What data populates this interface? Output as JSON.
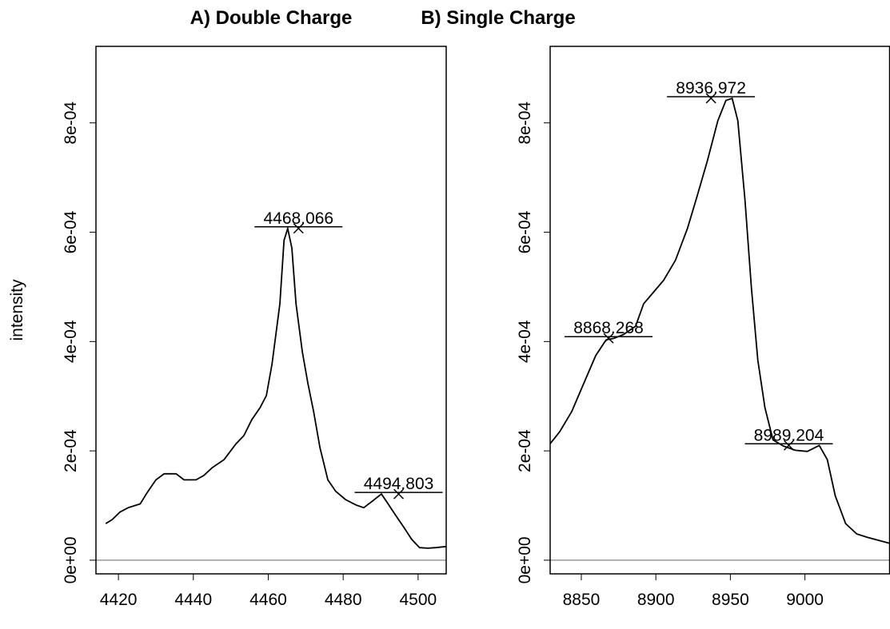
{
  "chart_data": [
    {
      "type": "line",
      "title": "A) Double Charge",
      "ylabel": "intensity",
      "xlim": [
        4414.0,
        4507.5
      ],
      "ylim": [
        -2.5e-05,
        0.00094
      ],
      "xticks": [
        4420,
        4440,
        4460,
        4480,
        4500
      ],
      "yticks": [
        {
          "value": 0,
          "label": "0e+00"
        },
        {
          "value": 0.0002,
          "label": "2e-04"
        },
        {
          "value": 0.0004,
          "label": "4e-04"
        },
        {
          "value": 0.0006,
          "label": "6e-04"
        },
        {
          "value": 0.0008,
          "label": "8e-04"
        }
      ],
      "hline": {
        "value": 0,
        "color": "#999999"
      },
      "series": [
        {
          "color": "#000000",
          "x": [
            4416.6,
            4418.3,
            4420.4,
            4422.6,
            4425.8,
            4427.9,
            4430.0,
            4432.2,
            4435.4,
            4437.5,
            4440.7,
            4442.8,
            4445.0,
            4448.2,
            4451.4,
            4453.5,
            4455.6,
            4457.8,
            4459.5,
            4461.0,
            4463.1,
            4464.2,
            4465.2,
            4466.3,
            4467.4,
            4469.1,
            4470.6,
            4472.1,
            4473.8,
            4475.9,
            4478.0,
            4480.6,
            4483.4,
            4485.5,
            4487.6,
            4490.2,
            4491.9,
            4494.0,
            4496.2,
            4498.3,
            4500.4,
            4502.6,
            4504.7,
            4507.5
          ],
          "values": [
            6.7e-05,
            7.4e-05,
            8.8e-05,
            9.6e-05,
            0.000103,
            0.000126,
            0.000147,
            0.000158,
            0.000158,
            0.000147,
            0.000147,
            0.000155,
            0.000169,
            0.000184,
            0.000213,
            0.000228,
            0.000257,
            0.000279,
            0.000301,
            0.000359,
            0.000469,
            0.000585,
            0.000607,
            0.000571,
            0.000469,
            0.000381,
            0.000323,
            0.000272,
            0.000206,
            0.000147,
            0.000126,
            0.000111,
            0.000101,
            9.6e-05,
            0.000107,
            0.000121,
            0.000104,
            8.2e-05,
            6e-05,
            3.8e-05,
            2.3e-05,
            2.2e-05,
            2.3e-05,
            2.5e-05
          ]
        }
      ],
      "peaks": {
        "x": [
          4468.066,
          4494.803
        ],
        "values": [
          0.000607,
          0.000121
        ]
      }
    },
    {
      "type": "line",
      "title": "B) Single Charge",
      "xlim": [
        8829.1,
        9056.8
      ],
      "ylim": [
        -2.5e-05,
        0.00094
      ],
      "xticks": [
        8850,
        8900,
        8950,
        9000
      ],
      "yticks": [
        {
          "value": 0,
          "label": "0e+00"
        },
        {
          "value": 0.0002,
          "label": "2e-04"
        },
        {
          "value": 0.0004,
          "label": "4e-04"
        },
        {
          "value": 0.0006,
          "label": "6e-04"
        },
        {
          "value": 0.0008,
          "label": "8e-04"
        }
      ],
      "hline": {
        "value": 0,
        "color": "#999999"
      },
      "series": [
        {
          "color": "#000000",
          "x": [
            8829.1,
            8835.5,
            8843.6,
            8851.6,
            8859.6,
            8866.6,
            8872.0,
            8878.4,
            8886.4,
            8891.8,
            8897.1,
            8905.2,
            8913.2,
            8921.2,
            8927.7,
            8934.6,
            8941.6,
            8947.0,
            8951.2,
            8955.0,
            8959.8,
            8964.1,
            8968.4,
            8973.2,
            8978.6,
            8985.5,
            8993.5,
            9001.6,
            9009.6,
            9015.0,
            9020.3,
            9027.3,
            9034.8,
            9041.8,
            9049.8,
            9056.8
          ],
          "values": [
            0.000213,
            0.000235,
            0.000272,
            0.000323,
            0.000374,
            0.000403,
            0.000406,
            0.000413,
            0.000428,
            0.000469,
            0.000486,
            0.000512,
            0.000549,
            0.000607,
            0.000666,
            0.000731,
            0.000804,
            0.000841,
            0.000845,
            0.000804,
            0.000658,
            0.000498,
            0.000366,
            0.000279,
            0.00022,
            0.000209,
            0.000201,
            0.000199,
            0.00021,
            0.000184,
            0.000118,
            6.7e-05,
            4.8e-05,
            4.2e-05,
            3.6e-05,
            3.1e-05
          ]
        }
      ],
      "peaks": {
        "x": [
          8868.268,
          8936.972,
          8989.204
        ],
        "values": [
          0.000406,
          0.000845,
          0.00021
        ]
      }
    }
  ]
}
